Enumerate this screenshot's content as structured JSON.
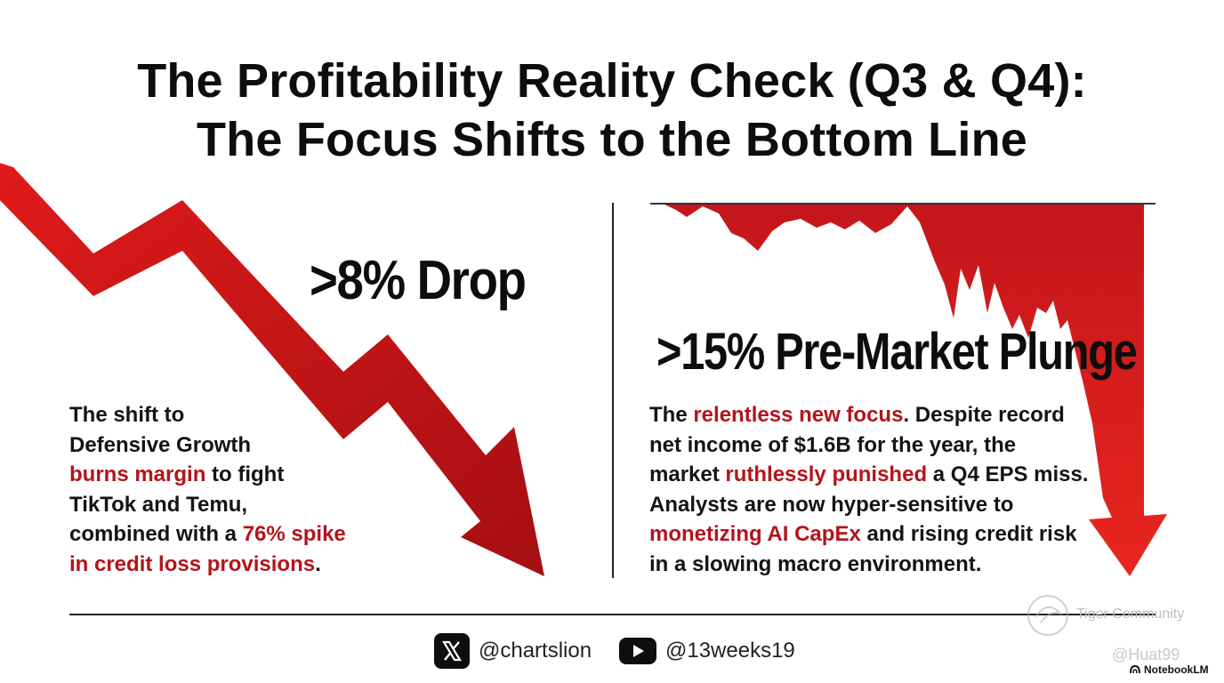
{
  "title": {
    "line1": "The Profitability Reality Check (Q3 & Q4):",
    "line2": "The Focus Shifts to the Bottom Line"
  },
  "left": {
    "stat": ">8% Drop",
    "text": {
      "p1": "The shift to",
      "p2": "Defensive Growth",
      "h1": "burns margin",
      "p3": " to fight",
      "p4": "TikTok and Temu,",
      "p5": "combined with a ",
      "h2": "76% spike",
      "h3": "in credit loss provisions",
      "p6": "."
    }
  },
  "right": {
    "stat": ">15% Pre-Market Plunge",
    "text": {
      "p1": "The ",
      "h1": "relentless new focus",
      "p2": ". Despite record",
      "p3": "net income of $1.6B for the year, the",
      "p4": "market ",
      "h2": "ruthlessly punished",
      "p5": " a Q4 EPS miss.",
      "p6": "Analysts are now hyper-sensitive to",
      "h3": "monetizing AI CapEx",
      "p7": " and rising credit risk",
      "p8": "in a slowing macro environment."
    }
  },
  "footer": {
    "x_handle": "@chartslion",
    "yt_handle": "@13weeks19",
    "x_icon": "x-logo-icon",
    "yt_icon": "youtube-play-icon"
  },
  "watermark": {
    "community": "Tiger Community",
    "handle": "@Huat99",
    "brand": "NotebookLM"
  },
  "colors": {
    "accent_red": "#b3141b",
    "text_dark": "#111111",
    "arrow_red": "#d11a1a"
  }
}
